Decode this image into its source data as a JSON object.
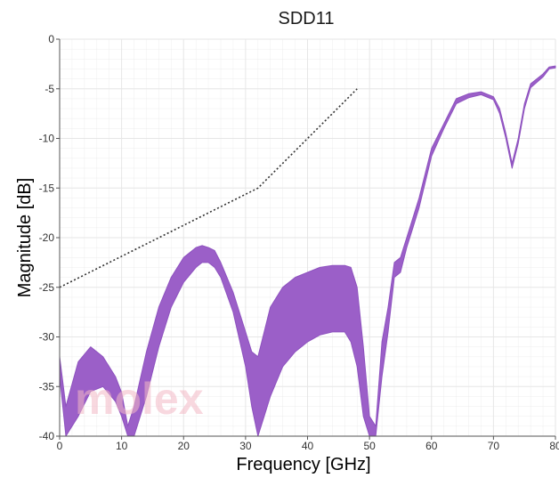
{
  "chart_data": {
    "type": "line",
    "title": "SDD11",
    "xlabel": "Frequency [GHz]",
    "ylabel": "Magnitude [dB]",
    "xlim": [
      0,
      80
    ],
    "ylim": [
      -40,
      0
    ],
    "x_ticks": [
      0,
      10,
      20,
      30,
      40,
      50,
      60,
      70,
      80
    ],
    "y_ticks": [
      0,
      -5,
      -10,
      -15,
      -20,
      -25,
      -30,
      -35,
      -40
    ],
    "grid": true,
    "watermark": "molex",
    "colors": {
      "band": "#9b5fc8",
      "band_edge": "#8e52bf",
      "limit": "#333333",
      "grid": "#e6e6e6"
    },
    "series": [
      {
        "x": [
          0,
          32,
          48
        ],
        "y": [
          -25,
          -15,
          -5
        ]
      },
      {
        "x": [
          0,
          1,
          3,
          5,
          7,
          9,
          10,
          11,
          12,
          14,
          16,
          18,
          20,
          22,
          23,
          24,
          25,
          26,
          28,
          30,
          31,
          32,
          33,
          34,
          36,
          38,
          40,
          42,
          44,
          46,
          47,
          48,
          49,
          50,
          51,
          52,
          53,
          54,
          55,
          56,
          57,
          58,
          60,
          62,
          64,
          66,
          68,
          70,
          71,
          72,
          73,
          74,
          75,
          76,
          78,
          79,
          80
        ],
        "y_upper": [
          -32,
          -37,
          -32.5,
          -31,
          -32,
          -34,
          -35.6,
          -39,
          -37,
          -31.5,
          -27,
          -24,
          -22,
          -21,
          -20.8,
          -21,
          -21.3,
          -22.5,
          -25.5,
          -29.5,
          -31.5,
          -32,
          -29.5,
          -27,
          -25,
          -24,
          -23.5,
          -23,
          -22.8,
          -22.8,
          -23,
          -25,
          -31,
          -38,
          -39,
          -30.5,
          -27,
          -22.5,
          -22,
          -20,
          -18,
          -16,
          -11,
          -8.5,
          -6,
          -5.5,
          -5.3,
          -5.8,
          -7,
          -9.5,
          -12.5,
          -10,
          -6.5,
          -4.5,
          -3.5,
          -2.8,
          -2.7
        ],
        "y_lower": [
          -34,
          -40,
          -38,
          -35.5,
          -35,
          -36.5,
          -38,
          -40,
          -40,
          -36,
          -31,
          -27,
          -24.5,
          -23,
          -22.5,
          -22.5,
          -23,
          -24,
          -27.5,
          -33,
          -37,
          -40,
          -38,
          -36,
          -33,
          -31.5,
          -30.5,
          -29.8,
          -29.5,
          -29.5,
          -30.5,
          -33,
          -38,
          -40,
          -40,
          -34,
          -29.5,
          -24,
          -23.5,
          -21,
          -19,
          -17,
          -11.8,
          -9,
          -6.5,
          -5.9,
          -5.6,
          -6.1,
          -7.5,
          -10,
          -13,
          -10.5,
          -7,
          -4.9,
          -3.8,
          -3,
          -2.9
        ]
      }
    ]
  }
}
